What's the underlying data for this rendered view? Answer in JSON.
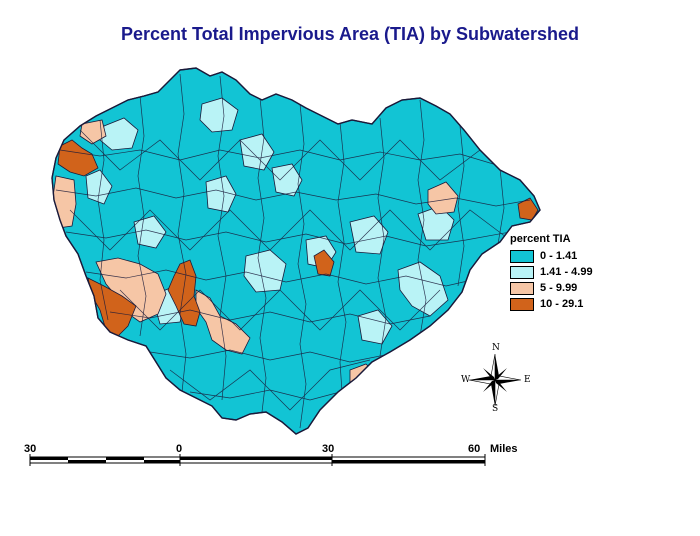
{
  "title": "Percent Total Impervious Area (TIA) by Subwatershed",
  "legend": {
    "title": "percent TIA",
    "items": [
      {
        "label": "0 - 1.41",
        "color": "#12c4d4"
      },
      {
        "label": "1.41 - 4.99",
        "color": "#b9f3f6"
      },
      {
        "label": "5 - 9.99",
        "color": "#f6c6a6"
      },
      {
        "label": "10 - 29.1",
        "color": "#d1631b"
      }
    ]
  },
  "compass": {
    "n": "N",
    "s": "S",
    "e": "E",
    "w": "W"
  },
  "scale_bar": {
    "ticks": [
      "30",
      "0",
      "30",
      "60"
    ],
    "unit": "Miles"
  },
  "colors": {
    "title": "#1a1a8c",
    "boundary": "#1a1a3a"
  }
}
